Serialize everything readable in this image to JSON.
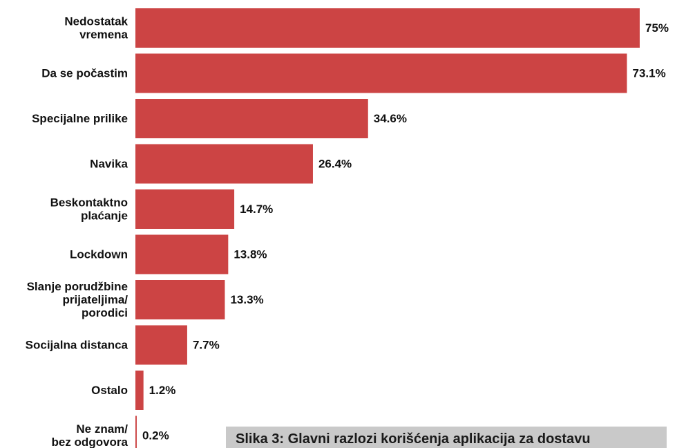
{
  "chart_data": {
    "type": "bar",
    "orientation": "horizontal",
    "categories": [
      [
        "Nedostatak",
        "vremena"
      ],
      [
        "Da se počastim"
      ],
      [
        "Specijalne prilike"
      ],
      [
        "Navika"
      ],
      [
        "Beskontaktno",
        "plaćanje"
      ],
      [
        "Lockdown"
      ],
      [
        "Slanje porudžbine",
        "prijateljima/",
        "porodici"
      ],
      [
        "Socijalna distanca"
      ],
      [
        "Ostalo"
      ],
      [
        "Ne znam/",
        "bez odgovora"
      ]
    ],
    "values": [
      75,
      73.1,
      34.6,
      26.4,
      14.7,
      13.8,
      13.3,
      7.7,
      1.2,
      0.2
    ],
    "value_labels": [
      "75%",
      "73.1%",
      "34.6%",
      "26.4%",
      "14.7%",
      "13.8%",
      "13.3%",
      "7.7%",
      "1.2%",
      "0.2%"
    ],
    "title": "",
    "xlabel": "",
    "ylabel": "",
    "xlim": [
      0,
      75
    ],
    "grid": false,
    "bar_color": "#cc4444"
  },
  "caption": {
    "text": "Slika 3: Glavni razlozi korišćenja aplikacija za dostavu"
  }
}
